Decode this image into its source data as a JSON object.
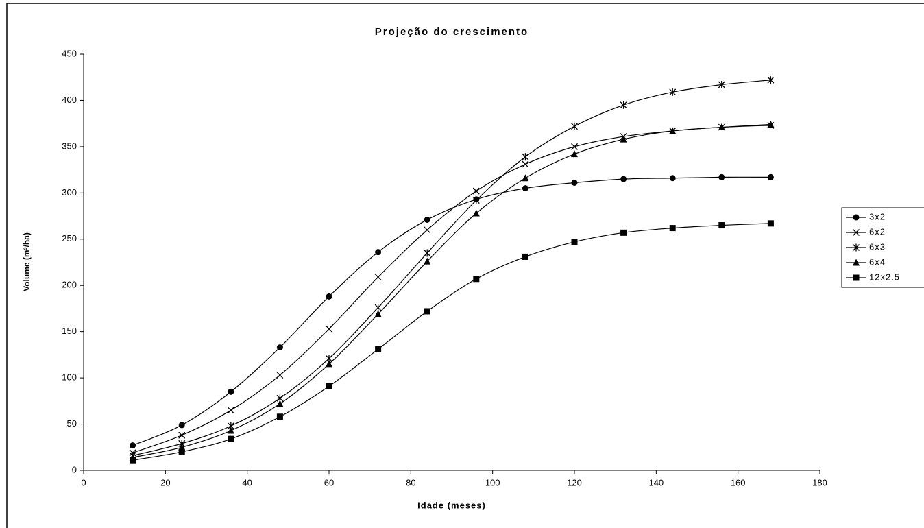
{
  "chart_data": {
    "type": "line",
    "title": "Projeção do crescimento",
    "x_label": "Idade (meses)",
    "y_label": "Volume (m³/ha)",
    "x": [
      12,
      24,
      36,
      48,
      60,
      72,
      84,
      96,
      108,
      120,
      132,
      144,
      156,
      168
    ],
    "series": [
      {
        "name": "3x2",
        "color": "#000000",
        "marker": "circle",
        "values": [
          27,
          49,
          85,
          133,
          188,
          236,
          271,
          293,
          305,
          311,
          315,
          316,
          317,
          317
        ]
      },
      {
        "name": "6x2",
        "color": "#000000",
        "marker": "x",
        "values": [
          19,
          38,
          65,
          103,
          153,
          209,
          260,
          302,
          331,
          350,
          361,
          367,
          371,
          373
        ]
      },
      {
        "name": "6x3",
        "color": "#000000",
        "marker": "star",
        "values": [
          16,
          29,
          48,
          78,
          121,
          176,
          235,
          292,
          339,
          372,
          395,
          409,
          417,
          422
        ]
      },
      {
        "name": "6x4",
        "color": "#000000",
        "marker": "triangle",
        "values": [
          14,
          25,
          43,
          72,
          115,
          169,
          226,
          278,
          316,
          342,
          358,
          367,
          371,
          374
        ]
      },
      {
        "name": "12x2.5",
        "color": "#000000",
        "marker": "square",
        "values": [
          11,
          20,
          34,
          58,
          91,
          131,
          172,
          207,
          231,
          247,
          257,
          262,
          265,
          267
        ]
      }
    ],
    "xlim": [
      0,
      180
    ],
    "xticks": [
      0,
      20,
      40,
      60,
      80,
      100,
      120,
      140,
      160,
      180
    ],
    "ylim": [
      0,
      450
    ],
    "yticks": [
      0,
      50,
      100,
      150,
      200,
      250,
      300,
      350,
      400,
      450
    ],
    "grid": false,
    "legend": "right"
  }
}
